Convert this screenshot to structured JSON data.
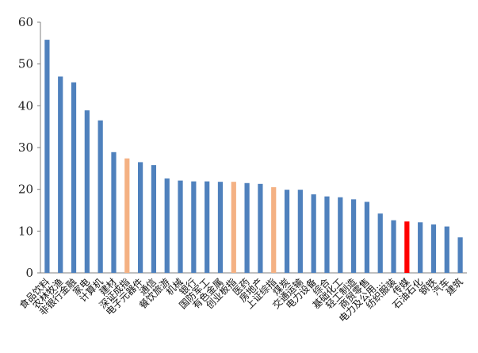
{
  "chart_data": {
    "type": "bar",
    "title": "",
    "xlabel": "",
    "ylabel": "",
    "ylim": [
      0,
      60
    ],
    "yticks": [
      0,
      10,
      20,
      30,
      40,
      50,
      60
    ],
    "grid": false,
    "legend": "none",
    "categories": [
      "食品饮料",
      "农林牧渔",
      "非银行金融",
      "家电",
      "计算机",
      "建材",
      "深证成指",
      "电子元器件",
      "通信",
      "餐饮旅游",
      "机械",
      "银行",
      "国防军工",
      "有色金属",
      "创业板指",
      "医药",
      "房地产",
      "上证综指",
      "煤炭",
      "交通运输",
      "电力设备",
      "综合",
      "基础化工",
      "轻工制造",
      "商贸零售",
      "电力及公用…",
      "纺织服装",
      "传媒",
      "石油石化",
      "钢铁",
      "汽车",
      "建筑"
    ],
    "values": [
      55.8,
      47.0,
      45.6,
      38.9,
      36.5,
      28.9,
      27.4,
      26.5,
      25.8,
      22.6,
      22.1,
      21.9,
      21.9,
      21.8,
      21.8,
      21.5,
      21.3,
      20.5,
      19.9,
      19.9,
      18.8,
      18.3,
      18.1,
      17.6,
      17.0,
      14.2,
      12.6,
      12.3,
      12.1,
      11.6,
      11.1,
      8.5
    ],
    "colors": {
      "default": "#4f81bd",
      "index": "#f4b183",
      "highlight": "#ff0000",
      "axis": "#808080"
    },
    "index_categories": [
      "深证成指",
      "创业板指",
      "上证综指"
    ],
    "highlight_categories": [
      "传媒"
    ]
  }
}
